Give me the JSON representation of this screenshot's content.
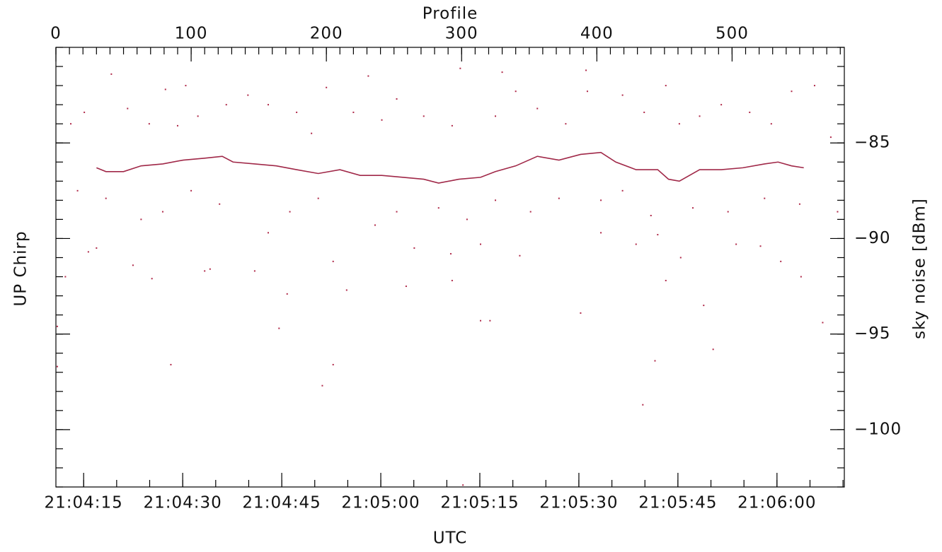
{
  "chart_data": {
    "type": "scatter",
    "left_label": "UP Chirp",
    "ylabel": "sky noise [dBm]",
    "xlabel": "Profile",
    "x2label": "UTC",
    "xlim": [
      0,
      583
    ],
    "xticks": [
      0,
      100,
      200,
      300,
      400,
      500
    ],
    "xminor": 10,
    "x2lim": [
      75850.8,
      75970.2
    ],
    "x2ticks": [
      {
        "value": 75855,
        "label": "21:04:15"
      },
      {
        "value": 75870,
        "label": "21:04:30"
      },
      {
        "value": 75885,
        "label": "21:04:45"
      },
      {
        "value": 75900,
        "label": "21:05:00"
      },
      {
        "value": 75915,
        "label": "21:05:15"
      },
      {
        "value": 75930,
        "label": "21:05:30"
      },
      {
        "value": 75945,
        "label": "21:05:45"
      },
      {
        "value": 75960,
        "label": "21:06:00"
      }
    ],
    "x2minor": 5,
    "ylim": [
      -103,
      -80
    ],
    "yticks": [
      {
        "value": -85,
        "label": "−85"
      },
      {
        "value": -90,
        "label": "−90"
      },
      {
        "value": -95,
        "label": "−95"
      },
      {
        "value": -100,
        "label": "−100"
      }
    ],
    "yminor": 1,
    "series": [
      {
        "type": "scatter",
        "color": "#b02a4a",
        "x": [
          41,
          96,
          81,
          231,
          299,
          330,
          392,
          451,
          561,
          200,
          85,
          197,
          205,
          434,
          165,
          443,
          486,
          301,
          314,
          321,
          388,
          479,
          171,
          259,
          215,
          293,
          451,
          551,
          567,
          1,
          1,
          7,
          24,
          30,
          57,
          71,
          110,
          114,
          147,
          205,
          265,
          292,
          314,
          343,
          403,
          429,
          445,
          462,
          503,
          521,
          536,
          53,
          21,
          11,
          69,
          90,
          105,
          126,
          142,
          157,
          178,
          189,
          220,
          241,
          252,
          272,
          293,
          325,
          340,
          356,
          377,
          393,
          419,
          435,
          461,
          476,
          492,
          513,
          529,
          544,
          573,
          16,
          37,
          63,
          79,
          100,
          121,
          157,
          173,
          194,
          236,
          252,
          283,
          304,
          325,
          351,
          372,
          403,
          419,
          440,
          471,
          497,
          524,
          550,
          578
        ],
        "values": [
          -81.4,
          -82.0,
          -82.2,
          -81.5,
          -81.1,
          -81.3,
          -81.2,
          -82.0,
          -82.0,
          -82.1,
          -96.6,
          -97.7,
          -96.6,
          -98.7,
          -94.7,
          -96.4,
          -95.8,
          -102.9,
          -94.3,
          -94.3,
          -93.9,
          -93.5,
          -92.9,
          -92.5,
          -92.7,
          -92.2,
          -92.2,
          -92.0,
          -94.4,
          -94.6,
          -96.7,
          -92.0,
          -90.7,
          -90.5,
          -91.4,
          -92.1,
          -91.7,
          -91.6,
          -91.7,
          -91.2,
          -90.5,
          -90.8,
          -90.3,
          -90.9,
          -89.7,
          -90.3,
          -89.8,
          -91.0,
          -90.3,
          -90.4,
          -91.2,
          -83.2,
          -83.4,
          -84.0,
          -84.0,
          -84.1,
          -83.6,
          -83.0,
          -82.5,
          -83.0,
          -83.4,
          -84.5,
          -83.4,
          -83.8,
          -82.7,
          -83.6,
          -84.1,
          -83.6,
          -82.3,
          -83.2,
          -84.0,
          -82.3,
          -82.5,
          -83.4,
          -84.0,
          -83.6,
          -83.0,
          -83.4,
          -84.0,
          -82.3,
          -84.7,
          -87.5,
          -87.9,
          -89.0,
          -88.6,
          -87.5,
          -88.2,
          -89.7,
          -88.6,
          -87.9,
          -89.3,
          -88.6,
          -88.4,
          -89.0,
          -88.0,
          -88.6,
          -87.9,
          -88.0,
          -87.5,
          -88.8,
          -88.4,
          -88.6,
          -87.9,
          -88.2,
          -88.6
        ]
      },
      {
        "type": "line",
        "color": "#a02848",
        "x": [
          30,
          37,
          50,
          63,
          79,
          94,
          110,
          123,
          131,
          147,
          163,
          178,
          194,
          210,
          225,
          241,
          257,
          272,
          283,
          298,
          314,
          325,
          340,
          356,
          372,
          388,
          403,
          414,
          429,
          445,
          453,
          461,
          476,
          492,
          508,
          524,
          534,
          544,
          553
        ],
        "values": [
          -86.3,
          -86.5,
          -86.5,
          -86.2,
          -86.1,
          -85.9,
          -85.8,
          -85.7,
          -86.0,
          -86.1,
          -86.2,
          -86.4,
          -86.6,
          -86.4,
          -86.7,
          -86.7,
          -86.8,
          -86.9,
          -87.1,
          -86.9,
          -86.8,
          -86.5,
          -86.2,
          -85.7,
          -85.9,
          -85.6,
          -85.5,
          -86.0,
          -86.4,
          -86.4,
          -86.9,
          -87.0,
          -86.4,
          -86.4,
          -86.3,
          -86.1,
          -86.0,
          -86.2,
          -86.3
        ]
      }
    ]
  }
}
